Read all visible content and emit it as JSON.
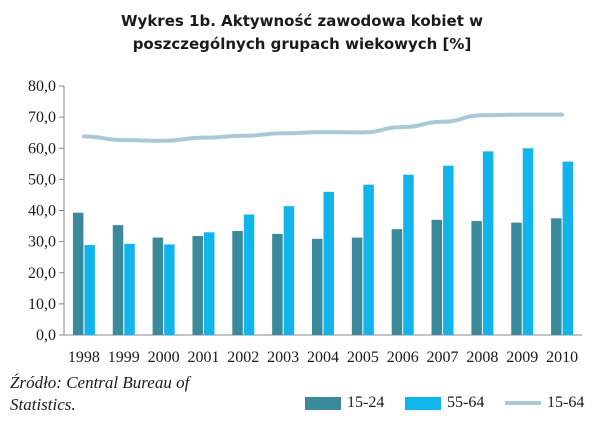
{
  "title_line1": "Wykres 1b. Aktywność zawodowa kobiet w",
  "title_line2": "poszczególnych grupach wiekowych [%]",
  "source_line1": "Źródło: Central Bureau of",
  "source_line2": "Statistics.",
  "colors": {
    "series_dark": "#3a8a9c",
    "series_bright": "#12b4ec",
    "series_line": "#a9c9d6",
    "axis": "#888888"
  },
  "chart_data": {
    "type": "bar",
    "categories": [
      "1998",
      "1999",
      "2000",
      "2001",
      "2002",
      "2003",
      "2004",
      "2005",
      "2006",
      "2007",
      "2008",
      "2009",
      "2010"
    ],
    "series": [
      {
        "name": "15-24",
        "type": "bar",
        "values": [
          39.3,
          35.3,
          31.3,
          31.8,
          33.4,
          32.5,
          30.9,
          31.3,
          34.0,
          37.0,
          36.6,
          36.1,
          37.5
        ]
      },
      {
        "name": "55-64",
        "type": "bar",
        "values": [
          28.9,
          29.3,
          29.1,
          33.0,
          38.7,
          41.4,
          46.0,
          48.3,
          51.5,
          54.4,
          59.0,
          60.0,
          55.7
        ]
      },
      {
        "name": "15-64",
        "type": "line",
        "values": [
          63.8,
          62.6,
          62.4,
          63.4,
          64.0,
          64.8,
          65.2,
          65.1,
          66.8,
          68.5,
          70.6,
          70.8,
          70.8
        ]
      }
    ],
    "yticks": [
      "0,0",
      "10,0",
      "20,0",
      "30,0",
      "40,0",
      "50,0",
      "60,0",
      "70,0",
      "80,0"
    ],
    "ylim": [
      0,
      80
    ],
    "grid": false,
    "legend": "bottom-right"
  }
}
